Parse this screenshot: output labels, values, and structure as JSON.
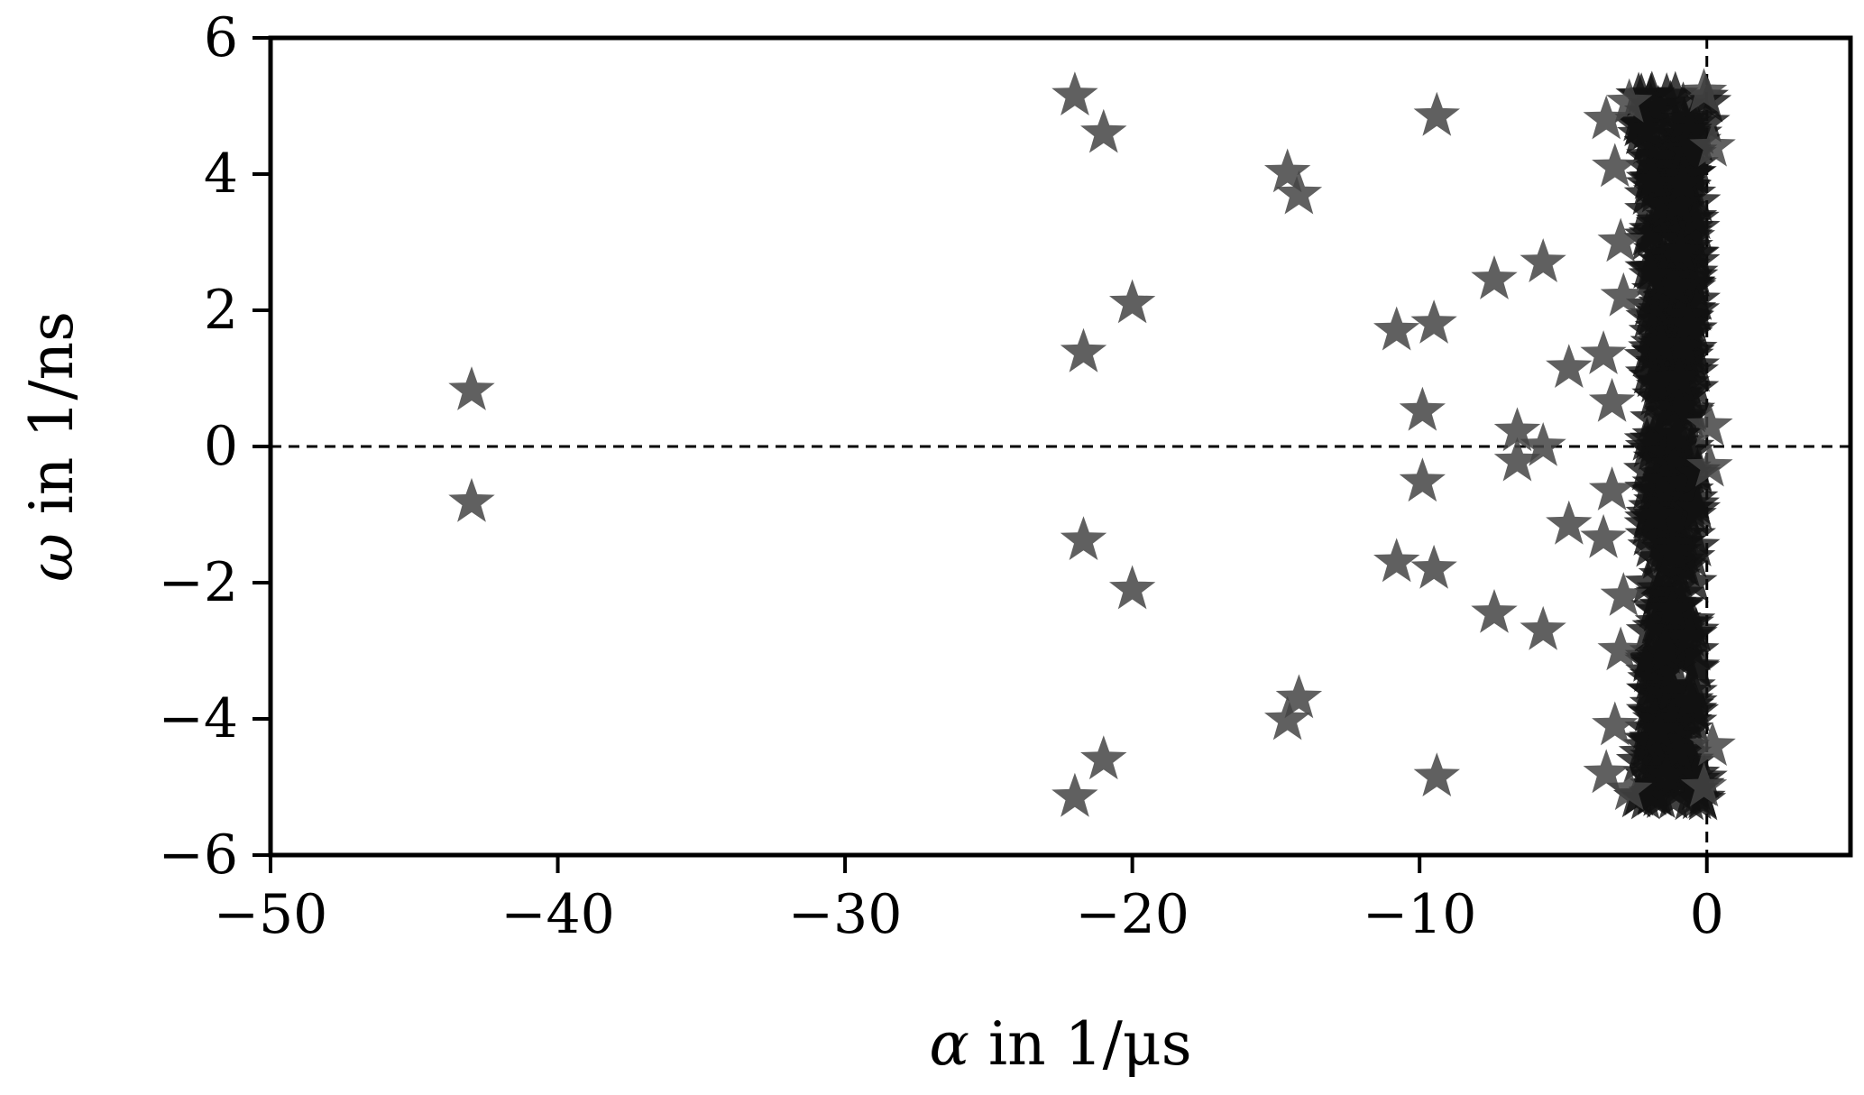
{
  "chart_data": {
    "type": "scatter",
    "marker": "star",
    "marker_color": "#444444",
    "marker_opacity": 0.85,
    "xlabel_symbol": "α",
    "xlabel_text": " in 1/μs",
    "ylabel_symbol": "ω",
    "ylabel_text": " in 1/ns",
    "xlim": [
      -50,
      5
    ],
    "ylim": [
      -6,
      6
    ],
    "xticks": [
      -50,
      -40,
      -30,
      -20,
      -10,
      0
    ],
    "xtick_labels": [
      "−50",
      "−40",
      "−30",
      "−20",
      "−10",
      "0"
    ],
    "yticks": [
      -6,
      -4,
      -2,
      0,
      2,
      4,
      6
    ],
    "ytick_labels": [
      "−6",
      "−4",
      "−2",
      "0",
      "2",
      "4",
      "6"
    ],
    "reference_lines": {
      "x": 0,
      "y": 0,
      "style": "dashed"
    },
    "grid": false,
    "points": [
      {
        "x": -43.0,
        "y": 0.82
      },
      {
        "x": -43.0,
        "y": -0.82
      },
      {
        "x": -22.0,
        "y": 5.15
      },
      {
        "x": -21.0,
        "y": 4.6
      },
      {
        "x": -22.0,
        "y": -5.15
      },
      {
        "x": -21.0,
        "y": -4.6
      },
      {
        "x": -21.7,
        "y": 1.38
      },
      {
        "x": -20.0,
        "y": 2.1
      },
      {
        "x": -21.7,
        "y": -1.38
      },
      {
        "x": -20.0,
        "y": -2.1
      },
      {
        "x": -14.6,
        "y": 4.02
      },
      {
        "x": -14.2,
        "y": 3.7
      },
      {
        "x": -14.6,
        "y": -4.02
      },
      {
        "x": -14.2,
        "y": -3.7
      },
      {
        "x": -9.4,
        "y": 4.85
      },
      {
        "x": -9.4,
        "y": -4.85
      },
      {
        "x": -10.8,
        "y": 1.7
      },
      {
        "x": -9.5,
        "y": 1.8
      },
      {
        "x": -10.8,
        "y": -1.7
      },
      {
        "x": -9.5,
        "y": -1.8
      },
      {
        "x": -9.9,
        "y": 0.52
      },
      {
        "x": -9.9,
        "y": -0.52
      },
      {
        "x": -7.4,
        "y": 2.45
      },
      {
        "x": -5.7,
        "y": 2.7
      },
      {
        "x": -7.4,
        "y": -2.45
      },
      {
        "x": -5.7,
        "y": -2.7
      },
      {
        "x": -6.6,
        "y": 0.22
      },
      {
        "x": -6.6,
        "y": -0.22
      },
      {
        "x": -5.7,
        "y": 0.0
      },
      {
        "x": -4.8,
        "y": 1.15
      },
      {
        "x": -4.8,
        "y": -1.15
      },
      {
        "x": -3.6,
        "y": 1.35
      },
      {
        "x": -3.6,
        "y": -1.35
      },
      {
        "x": -3.3,
        "y": 0.65
      },
      {
        "x": -3.3,
        "y": -0.65
      },
      {
        "x": -3.0,
        "y": 3.0
      },
      {
        "x": -3.0,
        "y": -3.0
      },
      {
        "x": -2.9,
        "y": 2.2
      },
      {
        "x": -2.9,
        "y": -2.2
      },
      {
        "x": -3.5,
        "y": 4.8
      },
      {
        "x": -3.5,
        "y": -4.8
      },
      {
        "x": -3.2,
        "y": 4.1
      },
      {
        "x": -3.2,
        "y": -4.1
      },
      {
        "x": -2.7,
        "y": 5.05
      },
      {
        "x": -2.7,
        "y": -5.05
      },
      {
        "x": -0.1,
        "y": 5.2
      },
      {
        "x": -0.1,
        "y": -5.0
      },
      {
        "x": 0.1,
        "y": 0.3
      },
      {
        "x": 0.1,
        "y": -0.3
      },
      {
        "x": 0.2,
        "y": 4.4
      },
      {
        "x": 0.2,
        "y": -4.4
      }
    ],
    "dense_cluster": {
      "x_min": -3.0,
      "x_max": 0.3,
      "y_min": -5.2,
      "y_max": 5.2,
      "x_center": -1.2
    }
  }
}
